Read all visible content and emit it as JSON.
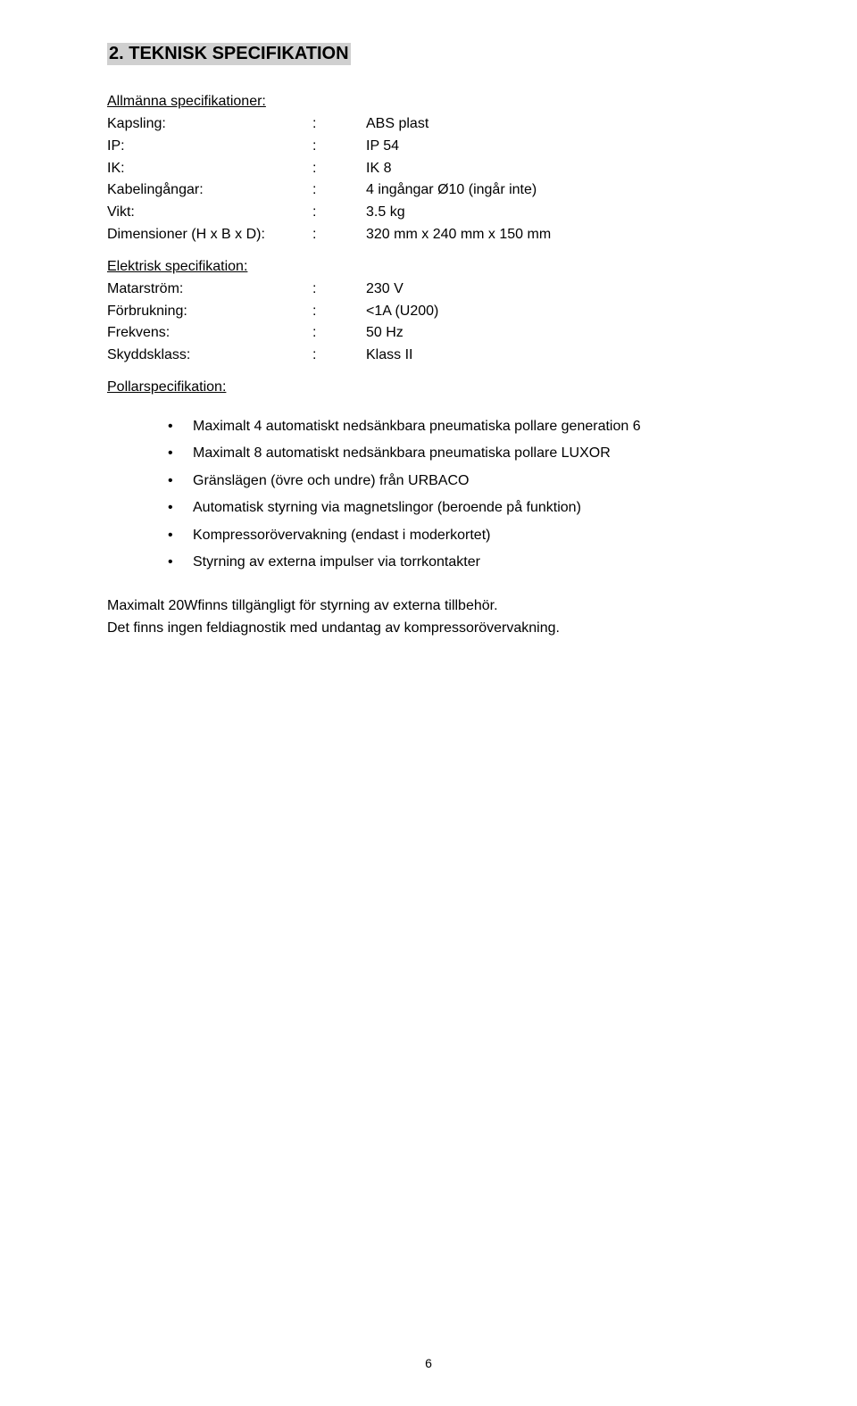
{
  "heading": "2. TEKNISK SPECIFIKATION",
  "sections": {
    "general": {
      "title": "Allmänna specifikationer:",
      "rows": [
        {
          "label": "Kapsling:",
          "value": "ABS plast"
        },
        {
          "label": "IP:",
          "value": "IP 54"
        },
        {
          "label": "IK:",
          "value": "IK 8"
        },
        {
          "label": "Kabelingångar:",
          "value": "4 ingångar Ø10 (ingår inte)"
        },
        {
          "label": "Vikt:",
          "value": "3.5 kg"
        },
        {
          "label": "Dimensioner (H x B x D):",
          "value": "320 mm x 240 mm x 150 mm"
        }
      ]
    },
    "electrical": {
      "title": "Elektrisk specifikation:",
      "rows": [
        {
          "label": "Matarström:",
          "value": "230 V"
        },
        {
          "label": "Förbrukning:",
          "value": "<1A (U200)"
        },
        {
          "label": "Frekvens:",
          "value": "50 Hz"
        },
        {
          "label": "Skyddsklass:",
          "value": "Klass II"
        }
      ]
    },
    "pollar": {
      "title": "Pollarspecifikation:",
      "bullets": [
        "Maximalt 4 automatiskt nedsänkbara pneumatiska pollare generation 6",
        "Maximalt 8 automatiskt nedsänkbara pneumatiska pollare LUXOR",
        "Gränslägen (övre och undre) från URBACO",
        "Automatisk styrning via magnetslingor (beroende på funktion)",
        "Kompressorövervakning (endast i moderkortet)",
        "Styrning av externa impulser via torrkontakter"
      ]
    }
  },
  "footer_paragraphs": [
    "Maximalt 20Wfinns tillgängligt för styrning av externa tillbehör.",
    "Det finns ingen feldiagnostik med undantag av kompressorövervakning."
  ],
  "page_number": "6",
  "colors": {
    "background": "#ffffff",
    "text": "#000000",
    "heading_bg": "#d0d0d0"
  },
  "typography": {
    "body_font": "Arial",
    "heading_fontsize": 20,
    "body_fontsize": 16,
    "page_number_fontsize": 14
  }
}
